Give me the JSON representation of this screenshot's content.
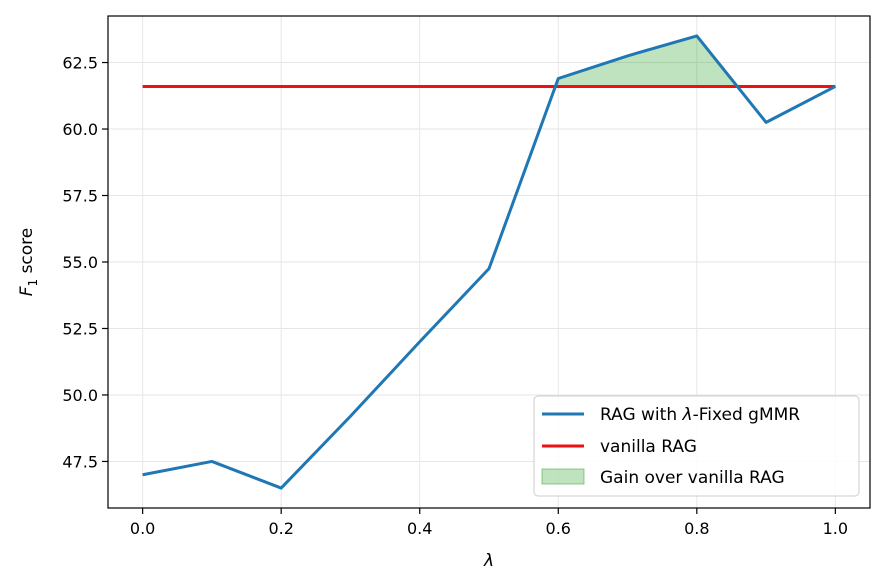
{
  "chart_data": {
    "type": "line",
    "xlabel": "λ",
    "ylabel_main": "F",
    "ylabel_sub": "1",
    "ylabel_rest": " score",
    "xlim": [
      -0.05,
      1.05
    ],
    "ylim": [
      45.75,
      64.25
    ],
    "xticks": [
      0.0,
      0.2,
      0.4,
      0.6,
      0.8,
      1.0
    ],
    "xtick_labels": [
      "0.0",
      "0.2",
      "0.4",
      "0.6",
      "0.8",
      "1.0"
    ],
    "yticks": [
      47.5,
      50.0,
      52.5,
      55.0,
      57.5,
      60.0,
      62.5
    ],
    "ytick_labels": [
      "47.5",
      "50.0",
      "52.5",
      "55.0",
      "57.5",
      "60.0",
      "62.5"
    ],
    "grid": true,
    "legend_position": "lower-right",
    "series": [
      {
        "name_pre": "RAG with ",
        "name_sym": "λ",
        "name_post": "-Fixed gMMR",
        "color": "#1f77b4",
        "x": [
          0.0,
          0.1,
          0.2,
          0.3,
          0.4,
          0.5,
          0.6,
          0.7,
          0.8,
          0.9,
          1.0
        ],
        "y": [
          47.0,
          47.5,
          46.5,
          49.2,
          52.0,
          54.75,
          61.9,
          62.75,
          63.5,
          60.25,
          61.6
        ]
      }
    ],
    "baseline": {
      "name": "vanilla RAG",
      "color": "#ee1111",
      "y": 61.6
    },
    "fill": {
      "name": "Gain over vanilla RAG",
      "color": "#2ca02c"
    }
  }
}
